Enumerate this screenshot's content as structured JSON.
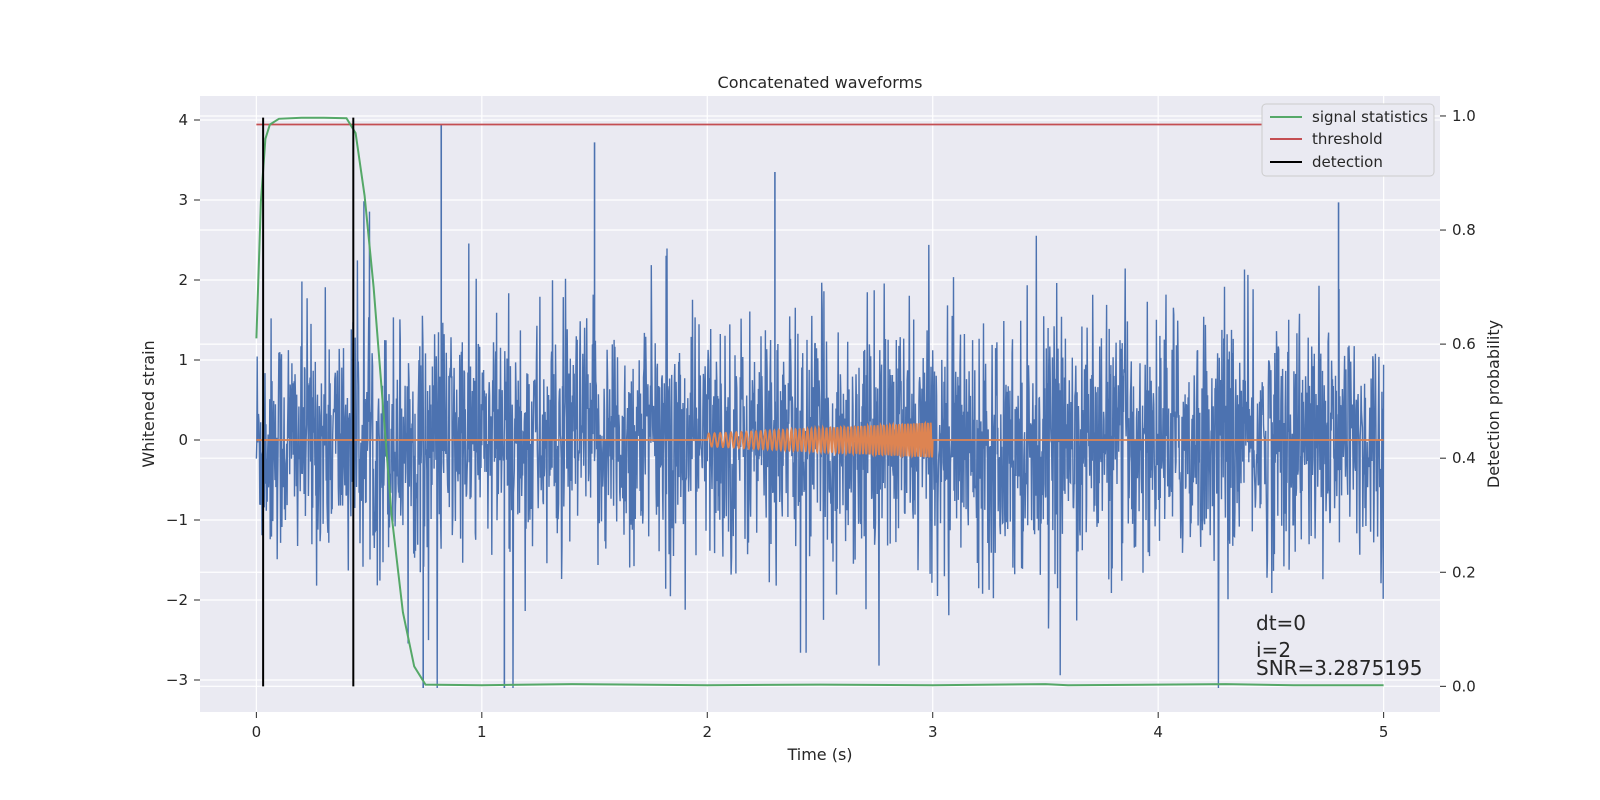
{
  "chart_data": {
    "type": "line",
    "title": "Concatenated waveforms",
    "xlabel": "Time (s)",
    "ylabel": "Whitened strain",
    "y2label": "Detection probability",
    "xlim": [
      -0.25,
      5.25
    ],
    "ylim": [
      -3.4,
      4.3
    ],
    "y2lim": [
      -0.045,
      1.035
    ],
    "xticks": [
      0,
      1,
      2,
      3,
      4,
      5
    ],
    "yticks": [
      -3,
      -2,
      -1,
      0,
      1,
      2,
      3,
      4
    ],
    "y2ticks": [
      0.0,
      0.2,
      0.4,
      0.6,
      0.8,
      1.0
    ],
    "xtick_labels": [
      "0",
      "1",
      "2",
      "3",
      "4",
      "5"
    ],
    "ytick_labels": [
      "−3",
      "−2",
      "−1",
      "0",
      "1",
      "2",
      "3",
      "4"
    ],
    "y2tick_labels": [
      "0.0",
      "0.2",
      "0.4",
      "0.6",
      "0.8",
      "1.0"
    ],
    "grid": true,
    "legend_position": "top-right",
    "colors": {
      "background": "#eaeaf2",
      "strain": "#4c72b0",
      "injection": "#dd8452",
      "signal_statistics": "#55a868",
      "threshold": "#c44e52",
      "detection": "#000000"
    },
    "series": [
      {
        "name": "",
        "axis": "left",
        "kind": "noise",
        "x_range": [
          0,
          5
        ],
        "typical_envelope": [
          -1.5,
          1.5
        ],
        "max": 3.95,
        "min": -3.1
      },
      {
        "name": "",
        "axis": "left",
        "kind": "chirp",
        "x_range": [
          2,
          3
        ],
        "amplitude_start": 0.08,
        "amplitude_end": 0.22,
        "baseline": 0
      },
      {
        "name": "signal statistics",
        "axis": "right",
        "x": [
          0,
          0.02,
          0.04,
          0.06,
          0.1,
          0.2,
          0.3,
          0.4,
          0.44,
          0.48,
          0.52,
          0.56,
          0.6,
          0.65,
          0.7,
          0.75,
          1.0,
          1.4,
          2.0,
          2.5,
          3.0,
          3.5,
          3.6,
          4.0,
          4.3,
          4.6,
          5.0
        ],
        "values": [
          0.61,
          0.85,
          0.96,
          0.985,
          0.995,
          0.997,
          0.997,
          0.996,
          0.97,
          0.86,
          0.7,
          0.5,
          0.3,
          0.13,
          0.035,
          0.003,
          0.002,
          0.004,
          0.002,
          0.003,
          0.002,
          0.004,
          0.002,
          0.003,
          0.004,
          0.002,
          0.002
        ]
      },
      {
        "name": "threshold",
        "axis": "right",
        "x": [
          0,
          5
        ],
        "values": [
          0.985,
          0.985
        ]
      },
      {
        "name": "detection",
        "axis": "right",
        "vertical_lines_x": [
          0.03,
          0.43
        ],
        "range": [
          0.0,
          0.997
        ]
      }
    ],
    "legend": [
      "signal statistics",
      "threshold",
      "detection"
    ],
    "annotations": [
      "dt=0",
      "i=2",
      "SNR=3.2875195"
    ]
  }
}
